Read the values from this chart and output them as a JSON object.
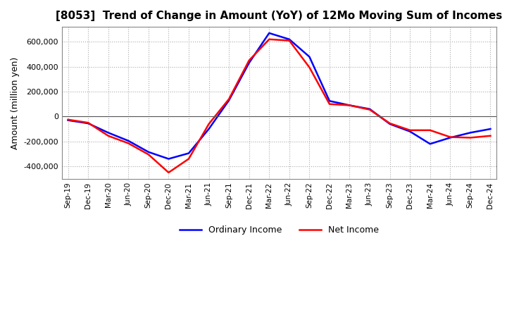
{
  "title": "[8053]  Trend of Change in Amount (YoY) of 12Mo Moving Sum of Incomes",
  "ylabel": "Amount (million yen)",
  "background_color": "#ffffff",
  "grid_color": "#aaaaaa",
  "line_blue": "#0000ff",
  "line_red": "#ff0000",
  "legend_labels": [
    "Ordinary Income",
    "Net Income"
  ],
  "x_labels": [
    "Sep-19",
    "Dec-19",
    "Mar-20",
    "Jun-20",
    "Sep-20",
    "Dec-20",
    "Mar-21",
    "Jun-21",
    "Sep-21",
    "Dec-21",
    "Mar-22",
    "Jun-22",
    "Sep-22",
    "Dec-22",
    "Mar-23",
    "Jun-23",
    "Sep-23",
    "Dec-23",
    "Mar-24",
    "Jun-24",
    "Sep-24",
    "Dec-24"
  ],
  "ordinary_income": [
    -30000,
    -55000,
    -130000,
    -195000,
    -285000,
    -340000,
    -295000,
    -100000,
    130000,
    430000,
    670000,
    620000,
    480000,
    125000,
    90000,
    60000,
    -60000,
    -120000,
    -220000,
    -170000,
    -130000,
    -100000
  ],
  "net_income": [
    -25000,
    -50000,
    -155000,
    -215000,
    -305000,
    -450000,
    -340000,
    -60000,
    140000,
    450000,
    620000,
    610000,
    395000,
    100000,
    90000,
    55000,
    -55000,
    -110000,
    -110000,
    -165000,
    -170000,
    -155000
  ],
  "ylim": [
    -500000,
    720000
  ],
  "yticks": [
    -400000,
    -200000,
    0,
    200000,
    400000,
    600000
  ],
  "zero_line_color": "#555555"
}
